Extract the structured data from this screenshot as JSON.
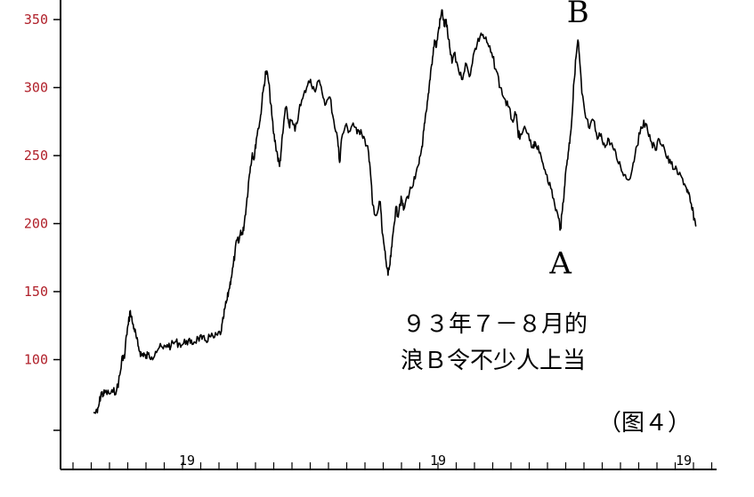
{
  "chart_data": {
    "type": "line",
    "title": "",
    "xlabel": "",
    "ylabel": "",
    "ylim": [
      50,
      360
    ],
    "y_ticks": [
      100,
      150,
      200,
      250,
      300,
      350
    ],
    "y_tick_labels": [
      "100",
      "150",
      "200",
      "250",
      "300",
      "350"
    ],
    "x_tick_labels": [
      "19",
      "19",
      "19"
    ],
    "grid": false,
    "series": [
      {
        "color": "#000000",
        "points": [
          [
            0,
            61
          ],
          [
            2,
            61
          ],
          [
            3,
            68
          ],
          [
            4,
            76
          ],
          [
            5,
            74
          ],
          [
            6,
            76
          ],
          [
            8,
            75
          ],
          [
            10,
            76
          ],
          [
            12,
            78
          ],
          [
            13,
            84
          ],
          [
            14,
            92
          ],
          [
            15,
            103
          ],
          [
            16,
            101
          ],
          [
            17,
            118
          ],
          [
            18,
            126
          ],
          [
            19,
            136
          ],
          [
            20,
            128
          ],
          [
            21,
            123
          ],
          [
            22,
            117
          ],
          [
            23,
            110
          ],
          [
            24,
            106
          ],
          [
            25,
            103
          ],
          [
            26,
            105
          ],
          [
            27,
            101
          ],
          [
            28,
            104
          ],
          [
            30,
            102
          ],
          [
            32,
            106
          ],
          [
            34,
            109
          ],
          [
            36,
            108
          ],
          [
            38,
            111
          ],
          [
            40,
            110
          ],
          [
            42,
            113
          ],
          [
            44,
            112
          ],
          [
            46,
            111
          ],
          [
            48,
            114
          ],
          [
            50,
            112
          ],
          [
            52,
            113
          ],
          [
            54,
            116
          ],
          [
            56,
            115
          ],
          [
            58,
            114
          ],
          [
            60,
            117
          ],
          [
            62,
            116
          ],
          [
            64,
            118
          ],
          [
            66,
            121
          ],
          [
            67,
            130
          ],
          [
            68,
            139
          ],
          [
            69,
            144
          ],
          [
            70,
            152
          ],
          [
            71,
            160
          ],
          [
            72,
            168
          ],
          [
            73,
            178
          ],
          [
            74,
            188
          ],
          [
            75,
            186
          ],
          [
            76,
            195
          ],
          [
            77,
            192
          ],
          [
            78,
            203
          ],
          [
            79,
            215
          ],
          [
            80,
            230
          ],
          [
            81,
            242
          ],
          [
            82,
            252
          ],
          [
            83,
            248
          ],
          [
            84,
            262
          ],
          [
            85,
            270
          ],
          [
            86,
            276
          ],
          [
            87,
            290
          ],
          [
            88,
            302
          ],
          [
            89,
            312
          ],
          [
            90,
            308
          ],
          [
            91,
            296
          ],
          [
            92,
            280
          ],
          [
            93,
            266
          ],
          [
            94,
            258
          ],
          [
            95,
            250
          ],
          [
            96,
            242
          ],
          [
            97,
            256
          ],
          [
            98,
            270
          ],
          [
            99,
            285
          ],
          [
            100,
            281
          ],
          [
            101,
            272
          ],
          [
            102,
            276
          ],
          [
            104,
            268
          ],
          [
            106,
            282
          ],
          [
            108,
            292
          ],
          [
            110,
            300
          ],
          [
            112,
            306
          ],
          [
            114,
            298
          ],
          [
            116,
            305
          ],
          [
            118,
            296
          ],
          [
            120,
            288
          ],
          [
            122,
            293
          ],
          [
            124,
            276
          ],
          [
            126,
            262
          ],
          [
            127,
            245
          ],
          [
            128,
            262
          ],
          [
            130,
            272
          ],
          [
            132,
            268
          ],
          [
            134,
            274
          ],
          [
            136,
            266
          ],
          [
            138,
            269
          ],
          [
            140,
            262
          ],
          [
            142,
            252
          ],
          [
            143,
            236
          ],
          [
            144,
            214
          ],
          [
            146,
            206
          ],
          [
            148,
            216
          ],
          [
            149,
            193
          ],
          [
            150,
            184
          ],
          [
            151,
            172
          ],
          [
            152,
            162
          ],
          [
            153,
            170
          ],
          [
            154,
            183
          ],
          [
            155,
            198
          ],
          [
            156,
            212
          ],
          [
            157,
            206
          ],
          [
            158,
            214
          ],
          [
            159,
            218
          ],
          [
            160,
            210
          ],
          [
            162,
            220
          ],
          [
            164,
            226
          ],
          [
            166,
            233
          ],
          [
            168,
            244
          ],
          [
            169,
            252
          ],
          [
            170,
            262
          ],
          [
            171,
            274
          ],
          [
            172,
            284
          ],
          [
            173,
            296
          ],
          [
            174,
            312
          ],
          [
            175,
            322
          ],
          [
            176,
            335
          ],
          [
            177,
            330
          ],
          [
            178,
            342
          ],
          [
            179,
            350
          ],
          [
            180,
            357
          ],
          [
            181,
            345
          ],
          [
            182,
            350
          ],
          [
            183,
            336
          ],
          [
            184,
            328
          ],
          [
            185,
            318
          ],
          [
            186,
            325
          ],
          [
            188,
            316
          ],
          [
            190,
            306
          ],
          [
            192,
            318
          ],
          [
            194,
            308
          ],
          [
            196,
            324
          ],
          [
            198,
            332
          ],
          [
            200,
            340
          ],
          [
            202,
            336
          ],
          [
            204,
            330
          ],
          [
            206,
            322
          ],
          [
            208,
            312
          ],
          [
            210,
            300
          ],
          [
            212,
            292
          ],
          [
            214,
            286
          ],
          [
            216,
            276
          ],
          [
            218,
            280
          ],
          [
            219,
            268
          ],
          [
            220,
            262
          ],
          [
            222,
            270
          ],
          [
            224,
            266
          ],
          [
            226,
            256
          ],
          [
            227,
            258
          ],
          [
            228,
            260
          ],
          [
            230,
            252
          ],
          [
            232,
            244
          ],
          [
            234,
            236
          ],
          [
            236,
            226
          ],
          [
            238,
            214
          ],
          [
            240,
            204
          ],
          [
            241,
            196
          ],
          [
            242,
            210
          ],
          [
            243,
            226
          ],
          [
            244,
            242
          ],
          [
            245,
            252
          ],
          [
            246,
            264
          ],
          [
            247,
            280
          ],
          [
            248,
            305
          ],
          [
            249,
            322
          ],
          [
            250,
            335
          ],
          [
            251,
            318
          ],
          [
            252,
            296
          ],
          [
            254,
            278
          ],
          [
            256,
            270
          ],
          [
            258,
            276
          ],
          [
            260,
            262
          ],
          [
            262,
            266
          ],
          [
            264,
            256
          ],
          [
            266,
            262
          ],
          [
            268,
            256
          ],
          [
            270,
            248
          ],
          [
            272,
            242
          ],
          [
            274,
            236
          ],
          [
            276,
            232
          ],
          [
            278,
            240
          ],
          [
            280,
            256
          ],
          [
            282,
            266
          ],
          [
            284,
            276
          ],
          [
            286,
            268
          ],
          [
            288,
            260
          ],
          [
            290,
            254
          ],
          [
            292,
            262
          ],
          [
            294,
            258
          ],
          [
            296,
            248
          ],
          [
            298,
            244
          ],
          [
            300,
            240
          ],
          [
            302,
            236
          ],
          [
            304,
            233
          ],
          [
            306,
            226
          ],
          [
            307,
            222
          ],
          [
            308,
            216
          ],
          [
            309,
            210
          ],
          [
            310,
            204
          ],
          [
            311,
            198
          ]
        ]
      }
    ],
    "annotations": [
      {
        "text": "A",
        "x": 241,
        "y": 196
      },
      {
        "text": "B",
        "x": 250,
        "y": 335
      }
    ]
  },
  "caption": {
    "line1": "９３年７－８月的",
    "line2": "浪Ｂ令不少人上当"
  },
  "figure_label": "（图４）"
}
